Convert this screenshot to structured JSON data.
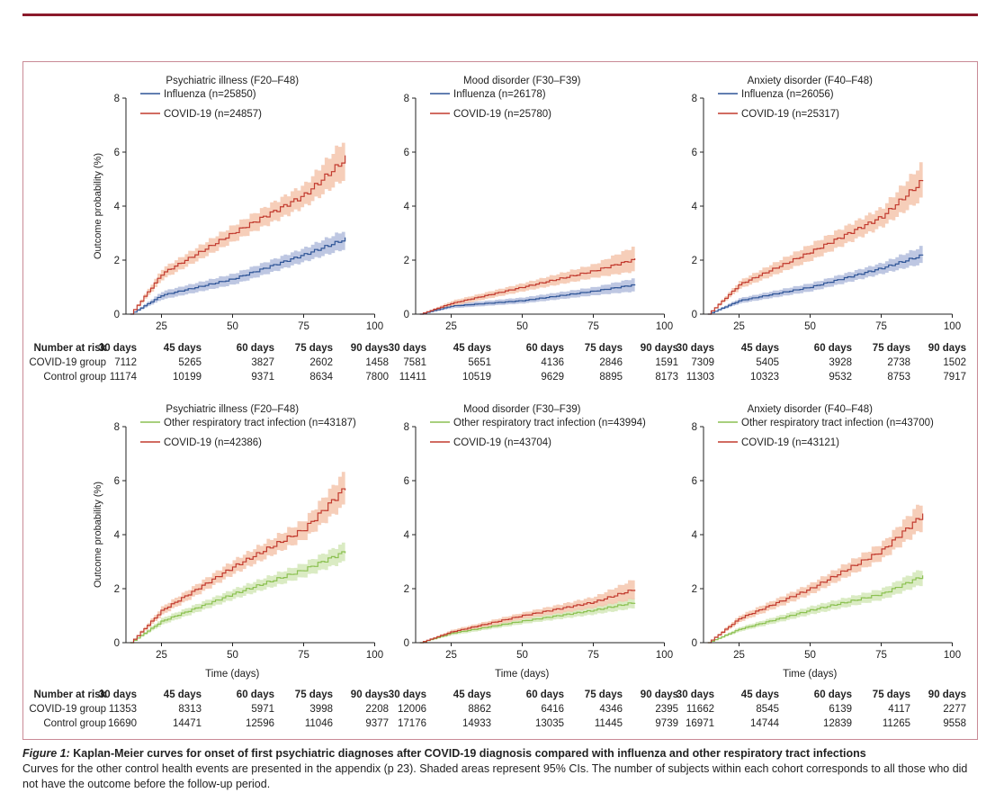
{
  "colors": {
    "influenza": "#2f5597",
    "influenza_ci": "#b3bddd",
    "covid": "#c23b2f",
    "covid_ci": "#f5c6ad",
    "other": "#8cc152",
    "other_ci": "#d3e8b8",
    "frame": "#c98a96",
    "rule": "#8b1a2b"
  },
  "chart_data": [
    {
      "type": "line",
      "title": "Psychiatric illness (F20–F48)",
      "ylabel": "Outcome probability (%)",
      "xlabel": "",
      "xlim": [
        12.5,
        100
      ],
      "ylim": [
        0,
        8
      ],
      "xticks": [
        25,
        50,
        75,
        100
      ],
      "yticks": [
        0,
        2,
        4,
        6,
        8
      ],
      "legend": "top-left",
      "series": [
        {
          "name": "Influenza (n=25850)",
          "color_key": "influenza",
          "x": [
            14,
            25,
            50,
            75,
            90
          ],
          "y": [
            0,
            0.7,
            1.3,
            2.2,
            2.8
          ],
          "lower": [
            0,
            0.55,
            1.1,
            1.95,
            2.45
          ],
          "upper": [
            0,
            0.85,
            1.5,
            2.45,
            3.15
          ]
        },
        {
          "name": "COVID-19 (n=24857)",
          "color_key": "covid",
          "x": [
            14,
            25,
            50,
            75,
            90
          ],
          "y": [
            0,
            1.5,
            3.0,
            4.4,
            5.8
          ],
          "lower": [
            0,
            1.3,
            2.7,
            4.0,
            5.1
          ],
          "upper": [
            0,
            1.7,
            3.3,
            4.8,
            6.6
          ]
        }
      ],
      "risk": {
        "header": "Number at risk",
        "times": [
          "30 days",
          "45 days",
          "60 days",
          "75 days",
          "90 days"
        ],
        "rows": [
          {
            "label": "COVID-19 group",
            "values": [
              7112,
              5265,
              3827,
              2602,
              1458
            ]
          },
          {
            "label": "Control group",
            "values": [
              11174,
              10199,
              9371,
              8634,
              7800
            ]
          }
        ]
      }
    },
    {
      "type": "line",
      "title": "Mood disorder (F30–F39)",
      "xlabel": "",
      "xlim": [
        12.5,
        100
      ],
      "ylim": [
        0,
        8
      ],
      "xticks": [
        25,
        50,
        75,
        100
      ],
      "yticks": [
        0,
        2,
        4,
        6,
        8
      ],
      "legend": "top-left",
      "series": [
        {
          "name": "Influenza (n=26178)",
          "color_key": "influenza",
          "x": [
            14,
            25,
            50,
            75,
            90
          ],
          "y": [
            0,
            0.3,
            0.5,
            0.85,
            1.1
          ],
          "lower": [
            0,
            0.22,
            0.4,
            0.7,
            0.85
          ],
          "upper": [
            0,
            0.38,
            0.62,
            1.0,
            1.35
          ]
        },
        {
          "name": "COVID-19 (n=25780)",
          "color_key": "covid",
          "x": [
            14,
            25,
            50,
            75,
            90
          ],
          "y": [
            0,
            0.4,
            1.0,
            1.6,
            2.05
          ],
          "lower": [
            0,
            0.3,
            0.85,
            1.35,
            1.6
          ],
          "upper": [
            0,
            0.5,
            1.15,
            1.85,
            2.55
          ]
        }
      ],
      "risk": {
        "header": "",
        "times": [
          "30 days",
          "45 days",
          "60 days",
          "75 days",
          "90 days"
        ],
        "rows": [
          {
            "label": "",
            "values": [
              7581,
              5651,
              4136,
              2846,
              1591
            ]
          },
          {
            "label": "",
            "values": [
              11411,
              10519,
              9629,
              8895,
              8173
            ]
          }
        ]
      }
    },
    {
      "type": "line",
      "title": "Anxiety disorder (F40–F48)",
      "xlabel": "",
      "xlim": [
        12.5,
        100
      ],
      "ylim": [
        0,
        8
      ],
      "xticks": [
        25,
        50,
        75,
        100
      ],
      "yticks": [
        0,
        2,
        4,
        6,
        8
      ],
      "legend": "top-left",
      "series": [
        {
          "name": "Influenza (n=26056)",
          "color_key": "influenza",
          "x": [
            14,
            25,
            50,
            75,
            90
          ],
          "y": [
            0,
            0.5,
            1.0,
            1.7,
            2.2
          ],
          "lower": [
            0,
            0.4,
            0.85,
            1.5,
            1.9
          ],
          "upper": [
            0,
            0.6,
            1.15,
            1.9,
            2.55
          ]
        },
        {
          "name": "COVID-19 (n=25317)",
          "color_key": "covid",
          "x": [
            14,
            25,
            50,
            75,
            90
          ],
          "y": [
            0,
            1.1,
            2.3,
            3.6,
            5.0
          ],
          "lower": [
            0,
            0.95,
            2.0,
            3.25,
            4.35
          ],
          "upper": [
            0,
            1.25,
            2.6,
            3.95,
            5.7
          ]
        }
      ],
      "risk": {
        "header": "",
        "times": [
          "30 days",
          "45 days",
          "60 days",
          "75 days",
          "90 days"
        ],
        "rows": [
          {
            "label": "",
            "values": [
              7309,
              5405,
              3928,
              2738,
              1502
            ]
          },
          {
            "label": "",
            "values": [
              11303,
              10323,
              9532,
              8753,
              7917
            ]
          }
        ]
      }
    },
    {
      "type": "line",
      "title": "Psychiatric illness (F20–F48)",
      "ylabel": "Outcome probability (%)",
      "xlabel": "Time (days)",
      "xlim": [
        12.5,
        100
      ],
      "ylim": [
        0,
        8
      ],
      "xticks": [
        25,
        50,
        75,
        100
      ],
      "yticks": [
        0,
        2,
        4,
        6,
        8
      ],
      "legend": "top-left",
      "series": [
        {
          "name": "Other respiratory tract infection (n=43187)",
          "color_key": "other",
          "x": [
            14,
            25,
            50,
            75,
            90
          ],
          "y": [
            0,
            0.8,
            1.8,
            2.7,
            3.4
          ],
          "lower": [
            0,
            0.68,
            1.62,
            2.45,
            3.05
          ],
          "upper": [
            0,
            0.92,
            1.98,
            2.95,
            3.75
          ]
        },
        {
          "name": "COVID-19 (n=42386)",
          "color_key": "covid",
          "x": [
            14,
            25,
            50,
            75,
            90
          ],
          "y": [
            0,
            1.2,
            2.8,
            4.2,
            5.8
          ],
          "lower": [
            0,
            1.05,
            2.55,
            3.85,
            5.2
          ],
          "upper": [
            0,
            1.35,
            3.05,
            4.55,
            6.45
          ]
        }
      ],
      "risk": {
        "header": "Number at risk",
        "times": [
          "30 days",
          "45 days",
          "60 days",
          "75 days",
          "90 days"
        ],
        "rows": [
          {
            "label": "COVID-19 group",
            "values": [
              11353,
              8313,
              5971,
              3998,
              2208
            ]
          },
          {
            "label": "Control group",
            "values": [
              16690,
              14471,
              12596,
              11046,
              9377
            ]
          }
        ]
      }
    },
    {
      "type": "line",
      "title": "Mood disorder (F30–F39)",
      "xlabel": "Time (days)",
      "xlim": [
        12.5,
        100
      ],
      "ylim": [
        0,
        8
      ],
      "xticks": [
        25,
        50,
        75,
        100
      ],
      "yticks": [
        0,
        2,
        4,
        6,
        8
      ],
      "legend": "top-left",
      "series": [
        {
          "name": "Other respiratory tract infection (n=43994)",
          "color_key": "other",
          "x": [
            14,
            25,
            50,
            75,
            90
          ],
          "y": [
            0,
            0.35,
            0.8,
            1.2,
            1.5
          ],
          "lower": [
            0,
            0.28,
            0.7,
            1.05,
            1.3
          ],
          "upper": [
            0,
            0.42,
            0.9,
            1.35,
            1.7
          ]
        },
        {
          "name": "COVID-19 (n=43704)",
          "color_key": "covid",
          "x": [
            14,
            25,
            50,
            75,
            90
          ],
          "y": [
            0,
            0.4,
            1.0,
            1.5,
            2.0
          ],
          "lower": [
            0,
            0.32,
            0.88,
            1.3,
            1.65
          ],
          "upper": [
            0,
            0.48,
            1.12,
            1.7,
            2.4
          ]
        }
      ],
      "risk": {
        "header": "",
        "times": [
          "30 days",
          "45 days",
          "60 days",
          "75 days",
          "90 days"
        ],
        "rows": [
          {
            "label": "",
            "values": [
              12006,
              8862,
              6416,
              4346,
              2395
            ]
          },
          {
            "label": "",
            "values": [
              17176,
              14933,
              13035,
              11445,
              9739
            ]
          }
        ]
      }
    },
    {
      "type": "line",
      "title": "Anxiety disorder (F40–F48)",
      "xlabel": "Time (days)",
      "xlim": [
        12.5,
        100
      ],
      "ylim": [
        0,
        8
      ],
      "xticks": [
        25,
        50,
        75,
        100
      ],
      "yticks": [
        0,
        2,
        4,
        6,
        8
      ],
      "legend": "top-left",
      "series": [
        {
          "name": "Other respiratory tract infection (n=43700)",
          "color_key": "other",
          "x": [
            14,
            25,
            50,
            75,
            90
          ],
          "y": [
            0,
            0.5,
            1.2,
            1.8,
            2.5
          ],
          "lower": [
            0,
            0.42,
            1.05,
            1.6,
            2.2
          ],
          "upper": [
            0,
            0.58,
            1.35,
            2.0,
            2.8
          ]
        },
        {
          "name": "COVID-19 (n=43121)",
          "color_key": "covid",
          "x": [
            14,
            25,
            50,
            75,
            90
          ],
          "y": [
            0,
            0.9,
            2.0,
            3.4,
            4.8
          ],
          "lower": [
            0,
            0.78,
            1.8,
            3.1,
            4.3
          ],
          "upper": [
            0,
            1.02,
            2.2,
            3.7,
            5.35
          ]
        }
      ],
      "risk": {
        "header": "",
        "times": [
          "30 days",
          "45 days",
          "60 days",
          "75 days",
          "90 days"
        ],
        "rows": [
          {
            "label": "",
            "values": [
              11662,
              8545,
              6139,
              4117,
              2277
            ]
          },
          {
            "label": "",
            "values": [
              16971,
              14744,
              12839,
              11265,
              9558
            ]
          }
        ]
      }
    }
  ],
  "caption": {
    "label": "Figure 1:",
    "title": " Kaplan-Meier curves for onset of first psychiatric diagnoses after COVID-19 diagnosis compared with influenza and other respiratory tract infections",
    "text": "Curves for the other control health events are presented in the appendix (p 23). Shaded areas represent 95% CIs. The number of subjects within each cohort corresponds to all those who did not have the outcome before the follow-up period."
  }
}
